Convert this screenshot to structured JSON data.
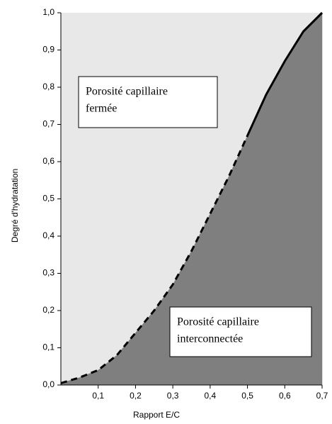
{
  "chart_data": {
    "type": "area",
    "x_label": "Rapport E/C",
    "y_label": "Degré d'hydratation",
    "xlim": [
      0,
      0.7
    ],
    "ylim": [
      0,
      1
    ],
    "xticks": [
      {
        "value": 0.1,
        "label": "0,1"
      },
      {
        "value": 0.2,
        "label": "0,2"
      },
      {
        "value": 0.3,
        "label": "0,3"
      },
      {
        "value": 0.4,
        "label": "0,4"
      },
      {
        "value": 0.5,
        "label": "0,5"
      },
      {
        "value": 0.6,
        "label": "0,6"
      },
      {
        "value": 0.7,
        "label": "0,7"
      }
    ],
    "yticks": [
      {
        "value": 0,
        "label": "0,0"
      },
      {
        "value": 0.1,
        "label": "0,1"
      },
      {
        "value": 0.2,
        "label": "0,2"
      },
      {
        "value": 0.3,
        "label": "0,3"
      },
      {
        "value": 0.4,
        "label": "0,4"
      },
      {
        "value": 0.5,
        "label": "0,5"
      },
      {
        "value": 0.6,
        "label": "0,6"
      },
      {
        "value": 0.7,
        "label": "0,7"
      },
      {
        "value": 0.8,
        "label": "0,8"
      },
      {
        "value": 0.9,
        "label": "0,9"
      },
      {
        "value": 1,
        "label": "1,0"
      }
    ],
    "background_color": "#e8e8e8",
    "fill_color": "#7f7f7f",
    "series": [
      {
        "color": "#000000",
        "dashed": true,
        "x": [
          0,
          0.05,
          0.1,
          0.15,
          0.2,
          0.25,
          0.3,
          0.35,
          0.4,
          0.45,
          0.5
        ],
        "values": [
          0.005,
          0.02,
          0.04,
          0.08,
          0.14,
          0.2,
          0.27,
          0.36,
          0.46,
          0.56,
          0.67
        ]
      },
      {
        "color": "#000000",
        "dashed": false,
        "x": [
          0.5,
          0.55,
          0.6,
          0.65,
          0.7
        ],
        "values": [
          0.67,
          0.78,
          0.87,
          0.95,
          1
        ]
      }
    ],
    "annotations": [
      {
        "lines": [
          "Porosité capillaire",
          "fermée"
        ]
      },
      {
        "lines": [
          "Porosité capillaire",
          "interconnectée"
        ]
      }
    ]
  }
}
